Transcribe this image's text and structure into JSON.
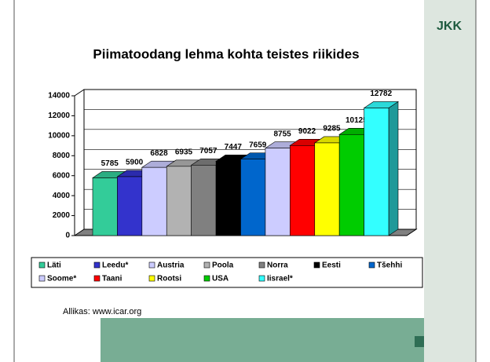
{
  "chart_data": {
    "type": "bar3d",
    "title": "Piimatoodang lehma kohta teistes riikides",
    "categories": [
      "Läti",
      "Leedu*",
      "Austria",
      "Poola",
      "Norra",
      "Eesti",
      "Tšehhi",
      "Soome*",
      "Taani",
      "Rootsi",
      "USA",
      "Iisrael*"
    ],
    "values": [
      5785,
      5900,
      6828,
      6935,
      7057,
      7447,
      7659,
      8755,
      9022,
      9285,
      10125,
      12782
    ],
    "colors": [
      "#33cc99",
      "#3333cc",
      "#ccccff",
      "#b2b2b2",
      "#808080",
      "#000000",
      "#0066cc",
      "#ccccff",
      "#ff0000",
      "#ffff00",
      "#00cc00",
      "#33ffff"
    ],
    "ylim": [
      0,
      14000
    ],
    "yticks": [
      0,
      2000,
      4000,
      6000,
      8000,
      10000,
      12000,
      14000
    ],
    "grid": true,
    "source": "Allikas: www.icar.org",
    "logo": "JKK"
  }
}
